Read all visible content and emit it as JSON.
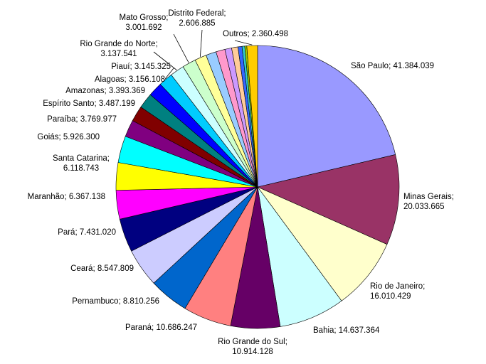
{
  "chart_data": {
    "type": "pie",
    "start_angle_deg": 0,
    "direction": "clockwise",
    "slices": [
      {
        "label": "São Paulo; 41.384.039",
        "lines": [
          "São Paulo; 41.384.039"
        ],
        "value": 41384039,
        "color": "#9999FF"
      },
      {
        "label": "Minas Gerais; 20.033.665",
        "lines": [
          "Minas Gerais;",
          "20.033.665"
        ],
        "value": 20033665,
        "color": "#993366"
      },
      {
        "label": "Rio de Janeiro; 16.010.429",
        "lines": [
          "Rio de Janeiro;",
          "16.010.429"
        ],
        "value": 16010429,
        "color": "#FFFFCC"
      },
      {
        "label": "Bahia; 14.637.364",
        "lines": [
          "Bahia; 14.637.364"
        ],
        "value": 14637364,
        "color": "#CCFFFF"
      },
      {
        "label": "Rio Grande do Sul; 10.914.128",
        "lines": [
          "Rio Grande do Sul;",
          "10.914.128"
        ],
        "value": 10914128,
        "color": "#660066"
      },
      {
        "label": "Paraná; 10.686.247",
        "lines": [
          "Paraná; 10.686.247"
        ],
        "value": 10686247,
        "color": "#FF8080"
      },
      {
        "label": "Pernambuco; 8.810.256",
        "lines": [
          "Pernambuco; 8.810.256"
        ],
        "value": 8810256,
        "color": "#0066CC"
      },
      {
        "label": "Ceará; 8.547.809",
        "lines": [
          "Ceará; 8.547.809"
        ],
        "value": 8547809,
        "color": "#CCCCFF"
      },
      {
        "label": "Pará; 7.431.020",
        "lines": [
          "Pará; 7.431.020"
        ],
        "value": 7431020,
        "color": "#000080"
      },
      {
        "label": "Maranhão; 6.367.138",
        "lines": [
          "Maranhão; 6.367.138"
        ],
        "value": 6367138,
        "color": "#FF00FF"
      },
      {
        "label": "Santa Catarina; 6.118.743",
        "lines": [
          "Santa Catarina;",
          "6.118.743"
        ],
        "value": 6118743,
        "color": "#FFFF00"
      },
      {
        "label": "Goiás; 5.926.300",
        "lines": [
          "Goiás; 5.926.300"
        ],
        "value": 5926300,
        "color": "#00FFFF"
      },
      {
        "label": "Paraíba; 3.769.977",
        "lines": [
          "Paraíba; 3.769.977"
        ],
        "value": 3769977,
        "color": "#800080"
      },
      {
        "label": "Espírito Santo; 3.487.199",
        "lines": [
          "Espírito Santo; 3.487.199"
        ],
        "value": 3487199,
        "color": "#800000"
      },
      {
        "label": "Amazonas; 3.393.369",
        "lines": [
          "Amazonas; 3.393.369"
        ],
        "value": 3393369,
        "color": "#008080"
      },
      {
        "label": "Alagoas; 3.156.108",
        "lines": [
          "Alagoas; 3.156.108"
        ],
        "value": 3156108,
        "color": "#0000FF"
      },
      {
        "label": "Piauí; 3.145.325",
        "lines": [
          "Piauí; 3.145.325"
        ],
        "value": 3145325,
        "color": "#00CCFF"
      },
      {
        "label": "Rio Grande do Norte; 3.137.541",
        "lines": [
          "Rio Grande do Norte;",
          "3.137.541"
        ],
        "value": 3137541,
        "color": "#CCFFFF"
      },
      {
        "label": "Mato Grosso; 3.001.692",
        "lines": [
          "Mato Grosso;",
          "3.001.692"
        ],
        "value": 3001692,
        "color": "#CCFFCC"
      },
      {
        "label": "Distrito Federal; 2.606.885",
        "lines": [
          "Distrito Federal;",
          "2.606.885"
        ],
        "value": 2606885,
        "color": "#FFFF99"
      },
      {
        "value": 2300000,
        "color": "#99CCFF"
      },
      {
        "value": 2000000,
        "color": "#FF99CC"
      },
      {
        "value": 1500000,
        "color": "#CC99FF"
      },
      {
        "value": 1400000,
        "color": "#FFCC99"
      },
      {
        "value": 900000,
        "color": "#3366FF"
      },
      {
        "value": 600000,
        "color": "#33CCCC"
      },
      {
        "value": 450000,
        "color": "#99CC00"
      },
      {
        "label": "Outros; 2.360.498",
        "lines": [
          "Outros; 2.360.498"
        ],
        "value": 2360498,
        "color": "#FFCC00"
      }
    ]
  }
}
